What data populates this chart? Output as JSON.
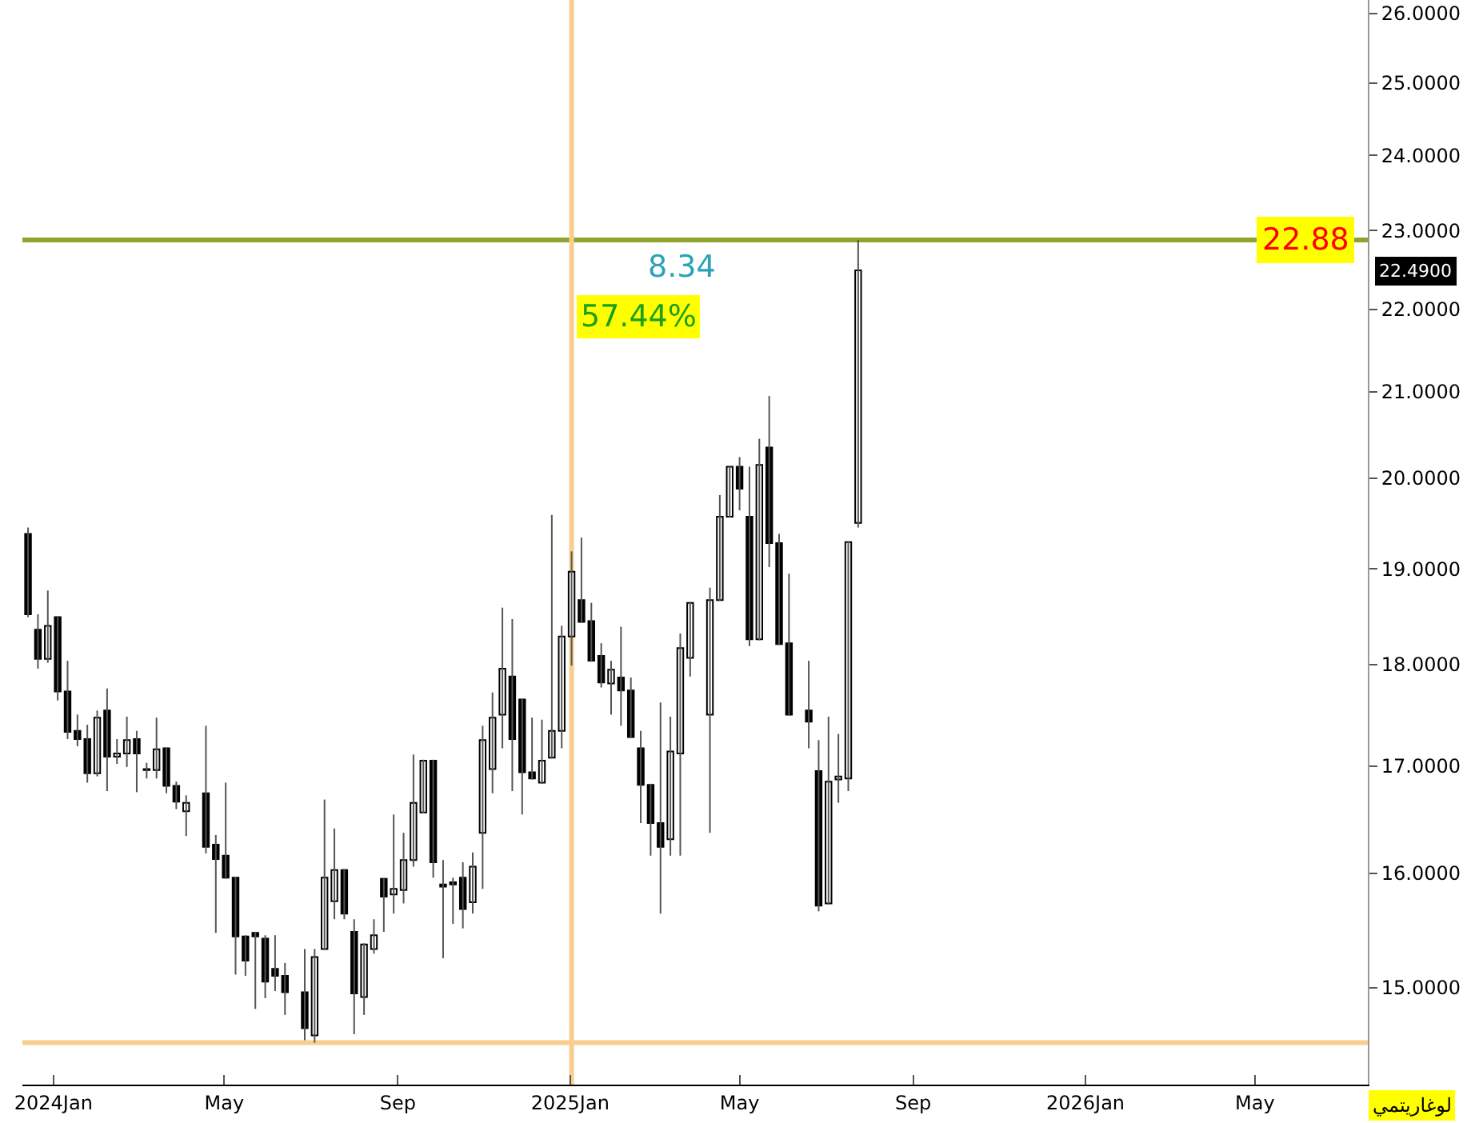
{
  "chart_data": {
    "type": "candlestick",
    "x": [
      "2023-12-14",
      "2023-12-21",
      "2023-12-28",
      "2024-01-04",
      "2024-01-11",
      "2024-01-18",
      "2024-01-25",
      "2024-02-01",
      "2024-02-08",
      "2024-02-15",
      "2024-02-22",
      "2024-02-29",
      "2024-03-07",
      "2024-03-14",
      "2024-03-21",
      "2024-03-28",
      "2024-04-04",
      "2024-04-18",
      "2024-04-25",
      "2024-05-02",
      "2024-05-09",
      "2024-05-16",
      "2024-05-23",
      "2024-05-30",
      "2024-06-06",
      "2024-06-13",
      "2024-06-27",
      "2024-07-04",
      "2024-07-11",
      "2024-07-18",
      "2024-07-25",
      "2024-08-01",
      "2024-08-08",
      "2024-08-15",
      "2024-08-22",
      "2024-08-29",
      "2024-09-05",
      "2024-09-12",
      "2024-09-19",
      "2024-09-26",
      "2024-10-03",
      "2024-10-10",
      "2024-10-17",
      "2024-10-24",
      "2024-10-31",
      "2024-11-07",
      "2024-11-14",
      "2024-11-21",
      "2024-11-28",
      "2024-12-05",
      "2024-12-12",
      "2024-12-19",
      "2024-12-26",
      "2025-01-02",
      "2025-01-09",
      "2025-01-16",
      "2025-01-23",
      "2025-01-30",
      "2025-02-06",
      "2025-02-13",
      "2025-02-20",
      "2025-02-27",
      "2025-03-06",
      "2025-03-13",
      "2025-03-20",
      "2025-03-27",
      "2025-04-10",
      "2025-04-17",
      "2025-04-24",
      "2025-05-01",
      "2025-05-08",
      "2025-05-15",
      "2025-05-22",
      "2025-05-29",
      "2025-06-05",
      "2025-06-19",
      "2025-06-26",
      "2025-07-03",
      "2025-07-10",
      "2025-07-17",
      "2025-07-24"
    ],
    "ohlc": [
      [
        19.38,
        19.45,
        18.49,
        18.52
      ],
      [
        18.36,
        18.52,
        17.96,
        18.06
      ],
      [
        18.06,
        18.77,
        18.02,
        18.4
      ],
      [
        18.49,
        18.5,
        17.64,
        17.73
      ],
      [
        17.73,
        18.04,
        17.26,
        17.33
      ],
      [
        17.34,
        17.5,
        17.19,
        17.26
      ],
      [
        17.26,
        17.4,
        16.84,
        16.93
      ],
      [
        16.93,
        17.54,
        16.9,
        17.47
      ],
      [
        17.54,
        17.76,
        16.76,
        17.09
      ],
      [
        17.09,
        17.26,
        17.02,
        17.12
      ],
      [
        17.12,
        17.48,
        16.99,
        17.25
      ],
      [
        17.26,
        17.34,
        16.75,
        17.12
      ],
      [
        16.96,
        17.03,
        16.88,
        16.97
      ],
      [
        16.96,
        17.47,
        16.88,
        17.16
      ],
      [
        17.17,
        17.18,
        16.74,
        16.81
      ],
      [
        16.81,
        16.85,
        16.59,
        16.66
      ],
      [
        16.57,
        16.72,
        16.34,
        16.65
      ],
      [
        16.74,
        17.39,
        16.18,
        16.24
      ],
      [
        16.26,
        16.35,
        15.47,
        16.13
      ],
      [
        16.16,
        16.84,
        15.95,
        15.96
      ],
      [
        15.96,
        15.97,
        15.11,
        15.44
      ],
      [
        15.44,
        15.45,
        15.1,
        15.23
      ],
      [
        15.47,
        15.48,
        14.82,
        15.44
      ],
      [
        15.42,
        15.45,
        14.91,
        15.05
      ],
      [
        15.16,
        15.45,
        14.97,
        15.1
      ],
      [
        15.1,
        15.21,
        14.77,
        14.96
      ],
      [
        14.96,
        15.33,
        14.56,
        14.66
      ],
      [
        14.6,
        15.33,
        14.54,
        15.26
      ],
      [
        15.33,
        16.68,
        15.32,
        15.96
      ],
      [
        15.75,
        16.41,
        15.59,
        16.03
      ],
      [
        16.03,
        16.04,
        15.59,
        15.64
      ],
      [
        15.48,
        15.59,
        14.61,
        14.95
      ],
      [
        14.92,
        15.38,
        14.77,
        15.37
      ],
      [
        15.33,
        15.59,
        15.29,
        15.45
      ],
      [
        15.95,
        15.96,
        15.48,
        15.79
      ],
      [
        15.81,
        16.54,
        15.64,
        15.86
      ],
      [
        15.85,
        16.37,
        15.73,
        16.12
      ],
      [
        16.12,
        17.11,
        16.06,
        16.65
      ],
      [
        16.56,
        17.06,
        16.55,
        17.05
      ],
      [
        17.05,
        17.06,
        15.96,
        16.1
      ],
      [
        15.9,
        16.12,
        15.25,
        15.88
      ],
      [
        15.92,
        15.96,
        15.55,
        15.9
      ],
      [
        15.96,
        16.1,
        15.51,
        15.68
      ],
      [
        15.74,
        16.19,
        15.64,
        16.06
      ],
      [
        16.37,
        17.39,
        15.86,
        17.25
      ],
      [
        16.97,
        17.72,
        16.74,
        17.47
      ],
      [
        17.5,
        18.59,
        17.17,
        17.96
      ],
      [
        17.88,
        18.47,
        16.76,
        17.26
      ],
      [
        17.65,
        17.66,
        16.54,
        16.94
      ],
      [
        16.94,
        17.47,
        16.87,
        16.88
      ],
      [
        16.84,
        17.45,
        16.83,
        17.05
      ],
      [
        17.08,
        19.59,
        17.07,
        17.34
      ],
      [
        17.34,
        18.4,
        17.17,
        18.29
      ],
      [
        18.29,
        19.19,
        17.99,
        18.97
      ],
      [
        18.67,
        19.34,
        18.43,
        18.44
      ],
      [
        18.45,
        18.64,
        18.03,
        18.04
      ],
      [
        18.09,
        18.22,
        17.77,
        17.82
      ],
      [
        17.81,
        18.04,
        17.5,
        17.95
      ],
      [
        17.87,
        18.39,
        17.39,
        17.74
      ],
      [
        17.74,
        17.87,
        17.27,
        17.28
      ],
      [
        17.17,
        17.34,
        16.46,
        16.82
      ],
      [
        16.82,
        16.83,
        16.16,
        16.46
      ],
      [
        16.46,
        17.62,
        15.64,
        16.24
      ],
      [
        16.31,
        17.48,
        16.16,
        17.14
      ],
      [
        17.12,
        18.32,
        16.16,
        18.17
      ],
      [
        18.07,
        18.65,
        17.88,
        18.64
      ],
      [
        17.5,
        18.8,
        16.37,
        18.67
      ],
      [
        18.67,
        19.81,
        18.66,
        19.57
      ],
      [
        19.57,
        20.14,
        19.56,
        20.13
      ],
      [
        20.13,
        20.24,
        19.64,
        19.88
      ],
      [
        19.57,
        20.13,
        18.19,
        18.26
      ],
      [
        18.26,
        20.45,
        18.25,
        20.15
      ],
      [
        20.35,
        20.95,
        19.02,
        19.28
      ],
      [
        19.28,
        19.38,
        18.2,
        18.21
      ],
      [
        18.22,
        18.95,
        17.49,
        17.5
      ],
      [
        17.54,
        18.04,
        17.17,
        17.43
      ],
      [
        16.95,
        17.25,
        15.66,
        15.71
      ],
      [
        15.73,
        17.48,
        15.72,
        16.85
      ],
      [
        16.87,
        17.31,
        16.65,
        16.9
      ],
      [
        16.88,
        19.3,
        16.76,
        19.29
      ],
      [
        19.5,
        22.88,
        19.45,
        22.49
      ]
    ],
    "log": "y",
    "xlim": [
      "2023-12-10",
      "2026-07-20"
    ],
    "xticks": [
      {
        "value": "2024-01-01",
        "label": "2024Jan"
      },
      {
        "value": "2024-05-01",
        "label": "May"
      },
      {
        "value": "2024-09-01",
        "label": "Sep"
      },
      {
        "value": "2025-01-01",
        "label": "2025Jan"
      },
      {
        "value": "2025-05-01",
        "label": "May"
      },
      {
        "value": "2025-09-01",
        "label": "Sep"
      },
      {
        "value": "2026-01-01",
        "label": "2026Jan"
      },
      {
        "value": "2026-05-01",
        "label": "May"
      }
    ],
    "ylim": [
      14.2,
      26.2
    ],
    "yticks": [
      {
        "value": 15,
        "label": "15.0000"
      },
      {
        "value": 16,
        "label": "16.0000"
      },
      {
        "value": 17,
        "label": "17.0000"
      },
      {
        "value": 18,
        "label": "18.0000"
      },
      {
        "value": 19,
        "label": "19.0000"
      },
      {
        "value": 20,
        "label": "20.0000"
      },
      {
        "value": 21,
        "label": "21.0000"
      },
      {
        "value": 22,
        "label": "22.0000"
      },
      {
        "value": 23,
        "label": "23.0000"
      },
      {
        "value": 24,
        "label": "24.0000"
      },
      {
        "value": 25,
        "label": "25.0000"
      },
      {
        "value": 26,
        "label": "26.0000"
      }
    ],
    "ref_lines": [
      {
        "axis": "y",
        "value": 22.88,
        "label": "22.88",
        "color": "#8fa32e"
      },
      {
        "axis": "x",
        "value": "2025-01-02",
        "label": null,
        "color": "#f9cd8e"
      },
      {
        "axis": "y",
        "value": 14.54,
        "label": null,
        "color": "#f9cd8e"
      }
    ],
    "annotations": [
      "8.34",
      "57.44%",
      "22.4900",
      "لوغاريتمي"
    ],
    "grid": false,
    "legend": false
  }
}
